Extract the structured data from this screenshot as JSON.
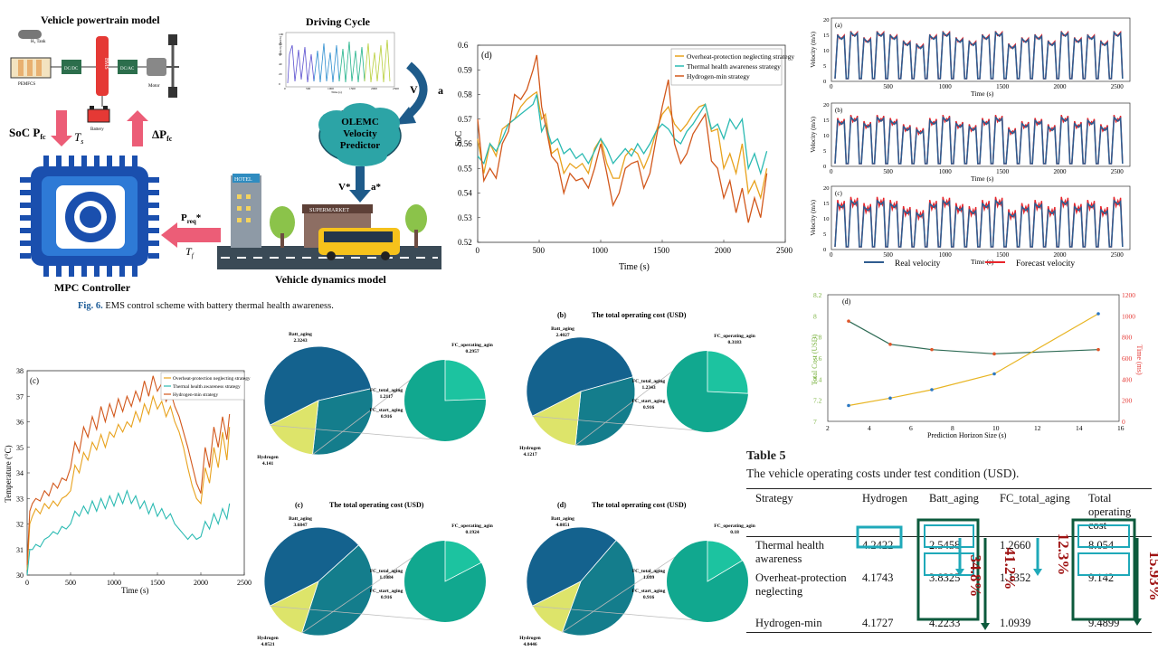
{
  "diagram": {
    "powertrain_title": "Vehicle powertrain model",
    "h2_tank": "H₂ Tank",
    "pemfcs": "PEMFCS",
    "dcdc1": "DC/DC",
    "dcdc2": "DC/AC",
    "bms": "BMS",
    "battery": "Battery",
    "motor": "Motor",
    "driving_cycle_title": "Driving Cycle",
    "velocity_label": "V",
    "accel_label": "a",
    "predictor_label": "OLEMC Velocity Predictor",
    "predictor_lines": [
      "OLEMC",
      "Velocity",
      "Predictor"
    ],
    "vstar_label": "V*",
    "astar_label": "a*",
    "soc_label": "SoC  P",
    "soc_sub": "fc",
    "ts_label": "T",
    "ts_sub": "s",
    "dp_label": "ΔP",
    "dp_sub": "fc",
    "preq_label": "P",
    "preq_sub": "req",
    "preq_star": "*",
    "tf_label": "T",
    "tf_sub": "f",
    "mpc_label": "MPC Controller",
    "vehicle_dynamics_label": "Vehicle dynamics model",
    "hotel": "HOTEL",
    "market": "SUPERMARKET",
    "dc_ylabel": "Velocity (km/h)",
    "dc_xlabel": "Time (s)",
    "dc_xticks": [
      "0",
      "500",
      "1000",
      "1500",
      "2000",
      "2500"
    ],
    "dc_yticks": [
      "0",
      "20",
      "40",
      "60",
      "80",
      "100"
    ]
  },
  "figure6_caption": {
    "label": "Fig. 6.",
    "text": "EMS control scheme with battery thermal health awareness."
  },
  "soc_chart": {
    "panel": "(d)",
    "ylabel": "SoC",
    "xlabel": "Time (s)",
    "legend": [
      "Overheat-protection neglecting strategy",
      "Thermal health awareness strategy",
      "Hydrogen-min strategy"
    ],
    "colors": [
      "#e8a21d",
      "#2bbab2",
      "#d2581c"
    ],
    "xticks": [
      "0",
      "500",
      "1000",
      "1500",
      "2000",
      "2500"
    ],
    "yticks": [
      "0.52",
      "0.53",
      "0.54",
      "0.55",
      "0.56",
      "0.57",
      "0.58",
      "0.59",
      "0.6"
    ]
  },
  "velocity_panels": {
    "panels": [
      "(a)",
      "(b)",
      "(c)"
    ],
    "ylabel": "Velocity (m/s)",
    "xlabel": "Time (s)",
    "xticks": [
      "0",
      "500",
      "1000",
      "1500",
      "2000",
      "2500"
    ],
    "yticks": [
      "0",
      "5",
      "10",
      "15",
      "20"
    ],
    "legend_real": "Real velocity",
    "legend_forecast": "Forecast velocity",
    "real_color": "#2f5c8f",
    "forecast_color": "#e8252b"
  },
  "temp_chart": {
    "panel": "(c)",
    "ylabel": "Temperature (°C)",
    "xlabel": "Time (s)",
    "legend": [
      "Overheat-protection neglecting strategy",
      "Thermal health awareness strategy",
      "Hydrogen-min strategy"
    ],
    "xticks": [
      "0",
      "500",
      "1000",
      "1500",
      "2000",
      "2500"
    ],
    "yticks": [
      "30",
      "31",
      "32",
      "33",
      "34",
      "35",
      "36",
      "37",
      "38"
    ]
  },
  "pies": [
    {
      "panel": "",
      "title": "",
      "batt": "Batt_aging",
      "batt_v": "2.3243",
      "hyd": "Hydrogen",
      "hyd_v": "4.141",
      "fc_total": "FC_total_aging",
      "fc_total_v": "1.2117",
      "fc_start": "FC_start_aging",
      "fc_start_v": "0.916",
      "fc_op": "FC_operating_agin",
      "fc_op_v": "0.2957"
    },
    {
      "panel": "(b)",
      "title": "The total operating cost (USD)",
      "batt": "Batt_aging",
      "batt_v": "2.4027",
      "hyd": "Hydrogen",
      "hyd_v": "4.1217",
      "fc_total": "FC_total_aging",
      "fc_total_v": "1.2343",
      "fc_start": "FC_start_aging",
      "fc_start_v": "0.916",
      "fc_op": "FC_operating_agin",
      "fc_op_v": "0.3183"
    },
    {
      "panel": "(c)",
      "title": "The total operating cost (USD)",
      "batt": "Batt_aging",
      "batt_v": "3.6847",
      "hyd": "Hydrogen",
      "hyd_v": "4.0521",
      "fc_total": "FC_total_aging",
      "fc_total_v": "1.1084",
      "fc_start": "FC_start_aging",
      "fc_start_v": "0.916",
      "fc_op": "FC_operating_agin",
      "fc_op_v": "0.1924"
    },
    {
      "panel": "(d)",
      "title": "The total operating cost (USD)",
      "batt": "Batt_aging",
      "batt_v": "4.0851",
      "hyd": "Hydrogen",
      "hyd_v": "4.0446",
      "fc_total": "FC_total_aging",
      "fc_total_v": "1.099",
      "fc_start": "FC_start_aging",
      "fc_start_v": "0.916",
      "fc_op": "FC_operating_agin",
      "fc_op_v": "0.18"
    }
  ],
  "pie_colors": {
    "hydrogen": "#14628e",
    "batt": "#147d8c",
    "fc": "#dde46a",
    "zoom": "#11a88f",
    "zoom_light": "#1cc3a0"
  },
  "cost_chart": {
    "panel": "(d)",
    "ylabel_left": "Total Cost (USD)",
    "ylabel_right": "Time (ms)",
    "xlabel": "Prediction Horizon Size (s)",
    "xticks": [
      "2",
      "4",
      "6",
      "8",
      "10",
      "12",
      "14",
      "16"
    ],
    "yticks_left": [
      "7",
      "7.2",
      "7.4",
      "7.6",
      "7.8",
      "8",
      "8.2"
    ],
    "yticks_right": [
      "0",
      "200",
      "400",
      "600",
      "800",
      "1000",
      "1200"
    ],
    "left_color": "#7cb342",
    "right_color": "#e53935"
  },
  "chart_data": [
    {
      "type": "line",
      "title": "",
      "panel": "(d)",
      "xlabel": "Time (s)",
      "ylabel": "SoC",
      "xlim": [
        0,
        2500
      ],
      "ylim": [
        0.52,
        0.6
      ],
      "x": [
        0,
        50,
        100,
        150,
        200,
        250,
        300,
        350,
        400,
        450,
        480,
        520,
        550,
        600,
        650,
        700,
        750,
        800,
        850,
        900,
        950,
        1000,
        1050,
        1100,
        1150,
        1200,
        1250,
        1300,
        1350,
        1400,
        1450,
        1500,
        1550,
        1600,
        1650,
        1700,
        1750,
        1800,
        1850,
        1900,
        1950,
        2000,
        2050,
        2100,
        2150,
        2200,
        2250,
        2300,
        2350
      ],
      "series": [
        {
          "name": "Overheat-protection neglecting strategy",
          "values": [
            0.562,
            0.548,
            0.56,
            0.555,
            0.566,
            0.568,
            0.57,
            0.575,
            0.578,
            0.58,
            0.581,
            0.57,
            0.572,
            0.556,
            0.558,
            0.548,
            0.552,
            0.55,
            0.552,
            0.548,
            0.558,
            0.562,
            0.552,
            0.546,
            0.546,
            0.555,
            0.558,
            0.556,
            0.55,
            0.556,
            0.565,
            0.572,
            0.575,
            0.568,
            0.565,
            0.568,
            0.572,
            0.575,
            0.576,
            0.565,
            0.566,
            0.55,
            0.556,
            0.548,
            0.56,
            0.54,
            0.545,
            0.538,
            0.55
          ]
        },
        {
          "name": "Thermal health awareness strategy",
          "values": [
            0.555,
            0.552,
            0.56,
            0.557,
            0.562,
            0.568,
            0.57,
            0.572,
            0.574,
            0.576,
            0.58,
            0.565,
            0.568,
            0.56,
            0.562,
            0.556,
            0.558,
            0.554,
            0.556,
            0.552,
            0.557,
            0.562,
            0.558,
            0.552,
            0.555,
            0.558,
            0.555,
            0.56,
            0.556,
            0.56,
            0.565,
            0.568,
            0.566,
            0.562,
            0.56,
            0.565,
            0.568,
            0.572,
            0.576,
            0.566,
            0.568,
            0.562,
            0.57,
            0.566,
            0.57,
            0.55,
            0.556,
            0.548,
            0.557
          ]
        },
        {
          "name": "Hydrogen-min strategy",
          "values": [
            0.57,
            0.545,
            0.55,
            0.546,
            0.56,
            0.565,
            0.58,
            0.578,
            0.582,
            0.59,
            0.596,
            0.575,
            0.568,
            0.555,
            0.552,
            0.54,
            0.548,
            0.545,
            0.546,
            0.542,
            0.55,
            0.56,
            0.548,
            0.535,
            0.54,
            0.55,
            0.552,
            0.553,
            0.542,
            0.548,
            0.562,
            0.575,
            0.586,
            0.56,
            0.552,
            0.556,
            0.564,
            0.568,
            0.572,
            0.553,
            0.55,
            0.538,
            0.545,
            0.532,
            0.542,
            0.528,
            0.538,
            0.53,
            0.548
          ]
        }
      ]
    },
    {
      "type": "line",
      "title": "",
      "panel": "(c)",
      "xlabel": "Time (s)",
      "ylabel": "Temperature (°C)",
      "xlim": [
        0,
        2500
      ],
      "ylim": [
        30,
        38
      ],
      "x": [
        0,
        30,
        60,
        100,
        150,
        200,
        250,
        300,
        350,
        400,
        450,
        500,
        550,
        600,
        650,
        700,
        750,
        800,
        850,
        900,
        950,
        1000,
        1050,
        1100,
        1150,
        1200,
        1250,
        1300,
        1350,
        1400,
        1450,
        1500,
        1550,
        1600,
        1650,
        1700,
        1750,
        1800,
        1850,
        1900,
        1950,
        2000,
        2050,
        2100,
        2150,
        2200,
        2250,
        2300,
        2330
      ],
      "series": [
        {
          "name": "Overheat-protection neglecting strategy",
          "values": [
            30.2,
            32.0,
            32.3,
            32.6,
            32.4,
            32.8,
            32.6,
            32.9,
            32.7,
            33.0,
            33.1,
            33.3,
            34.3,
            34.0,
            34.8,
            34.5,
            35.2,
            34.9,
            35.5,
            35.0,
            35.6,
            35.4,
            35.9,
            35.6,
            36.0,
            35.8,
            36.4,
            36.0,
            36.7,
            36.3,
            37.0,
            36.5,
            36.8,
            36.2,
            36.6,
            36.0,
            35.6,
            35.0,
            34.2,
            33.5,
            33.0,
            32.8,
            34.2,
            33.6,
            35.0,
            34.2,
            35.6,
            34.5,
            35.8
          ]
        },
        {
          "name": "Thermal health awareness strategy",
          "values": [
            30.0,
            31.0,
            31.0,
            31.2,
            31.1,
            31.4,
            31.5,
            31.7,
            31.6,
            31.9,
            31.8,
            32.0,
            32.5,
            32.3,
            32.7,
            32.4,
            32.9,
            32.5,
            33.0,
            32.6,
            33.1,
            32.7,
            33.2,
            32.8,
            33.3,
            32.8,
            33.1,
            32.6,
            32.9,
            32.4,
            32.8,
            32.3,
            32.6,
            32.2,
            32.4,
            32.0,
            31.8,
            31.6,
            31.4,
            31.6,
            31.4,
            31.5,
            32.1,
            31.8,
            32.4,
            32.0,
            32.6,
            32.2,
            32.8
          ]
        },
        {
          "name": "Hydrogen-min strategy",
          "values": [
            30.4,
            32.5,
            32.8,
            33.0,
            32.9,
            33.3,
            33.1,
            33.6,
            33.4,
            33.8,
            33.7,
            34.2,
            35.2,
            34.8,
            35.8,
            35.4,
            36.2,
            35.7,
            36.6,
            36.0,
            36.7,
            36.2,
            36.9,
            36.4,
            37.0,
            36.6,
            37.2,
            36.8,
            37.6,
            37.0,
            37.8,
            37.2,
            37.5,
            36.8,
            37.2,
            36.6,
            36.2,
            35.6,
            35.0,
            34.3,
            33.6,
            33.2,
            35.0,
            34.2,
            35.8,
            35.0,
            36.2,
            35.3,
            36.3
          ]
        }
      ]
    },
    {
      "type": "line",
      "title": "",
      "panel": "(d)",
      "xlabel": "Prediction Horizon Size (s)",
      "ylabel": "Total Cost (USD)",
      "xlim": [
        2,
        16
      ],
      "ylim": [
        7,
        8.2
      ],
      "x": [
        3,
        5,
        7,
        10,
        15
      ],
      "series": [
        {
          "name": "Total Cost (USD)",
          "axis": "left",
          "values": [
            7.95,
            7.73,
            7.68,
            7.64,
            7.68
          ]
        },
        {
          "name": "Time (ms)",
          "axis": "right",
          "values": [
            150,
            220,
            300,
            450,
            1020
          ]
        }
      ]
    },
    {
      "type": "pie",
      "title": "",
      "panel": "(a)",
      "categories": [
        "Hydrogen",
        "Batt_aging",
        "FC_total_aging"
      ],
      "values": [
        4.141,
        2.3243,
        1.2117
      ],
      "breakdown": {
        "categories": [
          "FC_start_aging",
          "FC_operating_agin"
        ],
        "values": [
          0.916,
          0.2957
        ]
      }
    },
    {
      "type": "pie",
      "title": "The total operating cost (USD)",
      "panel": "(b)",
      "categories": [
        "Hydrogen",
        "Batt_aging",
        "FC_total_aging"
      ],
      "values": [
        4.1217,
        2.4027,
        1.2343
      ],
      "breakdown": {
        "categories": [
          "FC_start_aging",
          "FC_operating_agin"
        ],
        "values": [
          0.916,
          0.3183
        ]
      }
    },
    {
      "type": "pie",
      "title": "The total operating cost (USD)",
      "panel": "(c)",
      "categories": [
        "Hydrogen",
        "Batt_aging",
        "FC_total_aging"
      ],
      "values": [
        4.0521,
        3.6847,
        1.1084
      ],
      "breakdown": {
        "categories": [
          "FC_start_aging",
          "FC_operating_agin"
        ],
        "values": [
          0.916,
          0.1924
        ]
      }
    },
    {
      "type": "pie",
      "title": "The total operating cost (USD)",
      "panel": "(d)",
      "categories": [
        "Hydrogen",
        "Batt_aging",
        "FC_total_aging"
      ],
      "values": [
        4.0446,
        4.0851,
        1.099
      ],
      "breakdown": {
        "categories": [
          "FC_start_aging",
          "FC_operating_agin"
        ],
        "values": [
          0.916,
          0.18
        ]
      }
    },
    {
      "type": "table",
      "title": "The vehicle operating costs under test condition (USD).",
      "columns": [
        "Strategy",
        "Hydrogen",
        "Batt_aging",
        "FC_total_aging",
        "Total operating cost"
      ],
      "rows": [
        [
          "Thermal health awareness",
          "4.2422",
          "2.5458",
          "1.2660",
          "8.054"
        ],
        [
          "Overheat-protection neglecting",
          "4.1743",
          "3.8325",
          "1.1352",
          "9.142"
        ],
        [
          "Hydrogen-min",
          "4.1727",
          "4.2233",
          "1.0939",
          "9.4899"
        ]
      ]
    }
  ],
  "table5": {
    "title": "Table 5",
    "caption": "The vehicle operating costs under test condition (USD).",
    "headers": [
      "Strategy",
      "Hydrogen",
      "Batt_aging",
      "FC_total_aging",
      "Total operating cost"
    ],
    "rows": [
      {
        "strategy": "Thermal health awareness",
        "hydrogen": "4.2422",
        "batt": "2.5458",
        "fc": "1.2660",
        "total": "8.054"
      },
      {
        "strategy": "Overheat-protection neglecting",
        "hydrogen": "4.1743",
        "batt": "3.8325",
        "fc": "1.1352",
        "total": "9.142"
      },
      {
        "strategy": "Hydrogen-min",
        "hydrogen": "4.1727",
        "batt": "4.2233",
        "fc": "1.0939",
        "total": "9.4899"
      }
    ],
    "annotations": [
      "34.8%",
      "41.2%",
      "12.3%",
      "15.93%"
    ],
    "annotation_color": "#9e1212",
    "box_color_hyd": "#1fa9b9",
    "box_color_dark": "#0c5a3c"
  }
}
